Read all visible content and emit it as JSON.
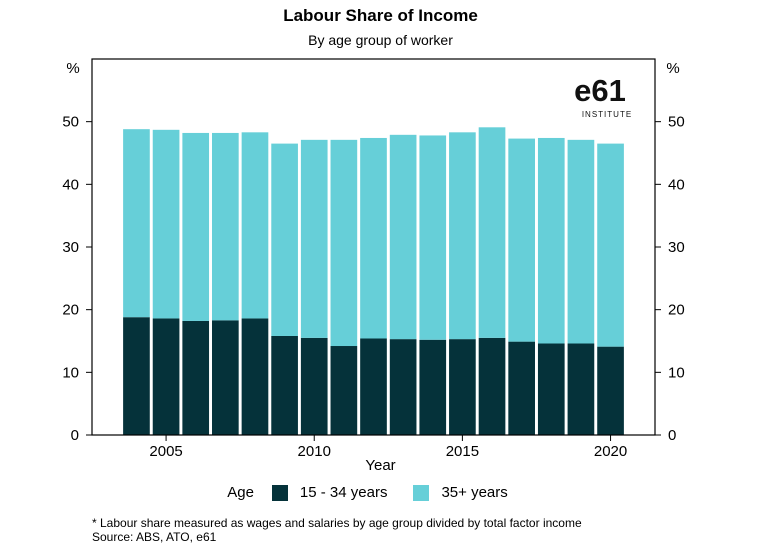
{
  "colors": {
    "young": "#05323a",
    "old": "#66cfd8",
    "axis": "#000000",
    "logo": "#111111"
  },
  "chart_data": {
    "type": "bar",
    "stacked": true,
    "title": "Labour Share of Income",
    "subtitle": "By age group of worker",
    "xlabel": "Year",
    "ylabel_left": "%",
    "ylabel_right": "%",
    "ylim": [
      0,
      60
    ],
    "yticks": [
      0,
      10,
      20,
      30,
      40,
      50
    ],
    "xticks": [
      2005,
      2010,
      2015,
      2020
    ],
    "legend_title": "Age",
    "legend_position": "bottom",
    "grid": false,
    "x": [
      2004,
      2005,
      2006,
      2007,
      2008,
      2009,
      2010,
      2011,
      2012,
      2013,
      2014,
      2015,
      2016,
      2017,
      2018,
      2019,
      2020
    ],
    "series": [
      {
        "name": "15 - 34 years",
        "color": "#05323a",
        "values": [
          18.8,
          18.6,
          18.2,
          18.3,
          18.6,
          15.8,
          15.5,
          14.2,
          15.4,
          15.3,
          15.2,
          15.3,
          15.5,
          14.9,
          14.6,
          14.6,
          14.1
        ]
      },
      {
        "name": "35+ years",
        "color": "#66cfd8",
        "values": [
          30.0,
          30.1,
          30.0,
          29.9,
          29.7,
          30.7,
          31.6,
          32.9,
          32.0,
          32.6,
          32.6,
          33.0,
          33.6,
          32.4,
          32.8,
          32.5,
          32.4
        ]
      }
    ]
  },
  "logo": {
    "text": "e61",
    "subtext": "INSTITUTE"
  },
  "footnote": {
    "line1": "* Labour share measured as wages and salaries by age group divided by total factor income",
    "line2": "Source: ABS, ATO, e61"
  }
}
